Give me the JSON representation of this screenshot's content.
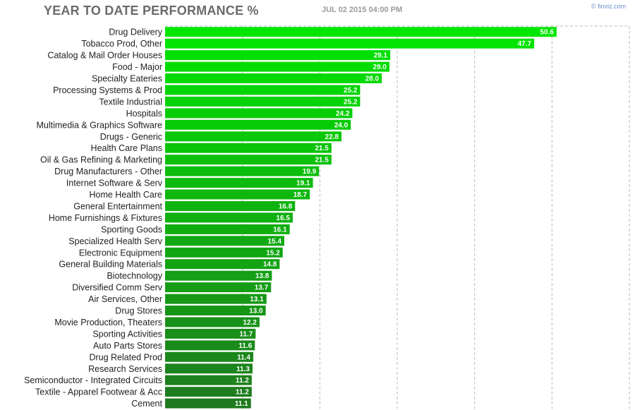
{
  "header": {
    "title": "YEAR TO DATE PERFORMANCE %",
    "timestamp": "JUL 02 2015 04:00 PM",
    "credit": "© finviz.com"
  },
  "chart_data": {
    "type": "bar",
    "orientation": "horizontal",
    "title": "YEAR TO DATE PERFORMANCE %",
    "xlim": [
      0,
      60
    ],
    "grid": true,
    "categories": [
      "Drug Delivery",
      "Tobacco Prod, Other",
      "Catalog & Mail Order Houses",
      "Food - Major",
      "Specialty Eateries",
      "Processing Systems & Prod",
      "Textile Industrial",
      "Hospitals",
      "Multimedia & Graphics Software",
      "Drugs - Generic",
      "Health Care Plans",
      "Oil & Gas Refining & Marketing",
      "Drug Manufacturers - Other",
      "Internet Software & Serv",
      "Home Health Care",
      "General Entertainment",
      "Home Furnishings & Fixtures",
      "Sporting Goods",
      "Specialized Health Serv",
      "Electronic Equipment",
      "General Building Materials",
      "Biotechnology",
      "Diversified Comm Serv",
      "Air Services, Other",
      "Drug Stores",
      "Movie Production, Theaters",
      "Sporting Activities",
      "Auto Parts Stores",
      "Drug Related Prod",
      "Research Services",
      "Semiconductor - Integrated Circuits",
      "Textile - Apparel Footwear & Acc",
      "Cement"
    ],
    "values": [
      50.6,
      47.7,
      29.1,
      29.0,
      28.0,
      25.2,
      25.2,
      24.2,
      24.0,
      22.8,
      21.5,
      21.5,
      19.9,
      19.1,
      18.7,
      16.8,
      16.5,
      16.1,
      15.4,
      15.2,
      14.8,
      13.8,
      13.7,
      13.1,
      13.0,
      12.2,
      11.7,
      11.6,
      11.4,
      11.3,
      11.2,
      11.2,
      11.1
    ],
    "value_labels": [
      "50.6",
      "47.7",
      "29.1",
      "29.0",
      "28.0",
      "25.2",
      "25.2",
      "24.2",
      "24.0",
      "22.8",
      "21.5",
      "21.5",
      "19.9",
      "19.1",
      "18.7",
      "16.8",
      "16.5",
      "16.1",
      "15.4",
      "15.2",
      "14.8",
      "13.8",
      "13.7",
      "13.1",
      "13.0",
      "12.2",
      "11.7",
      "11.6",
      "11.4",
      "11.3",
      "11.2",
      "11.2",
      "11.1"
    ],
    "colors": {
      "bar_top": "#00e600",
      "bar_bottom": "#1f7a1f",
      "grid": "#bbbbbb",
      "label": "#222222",
      "value_text": "#ffffff"
    }
  }
}
